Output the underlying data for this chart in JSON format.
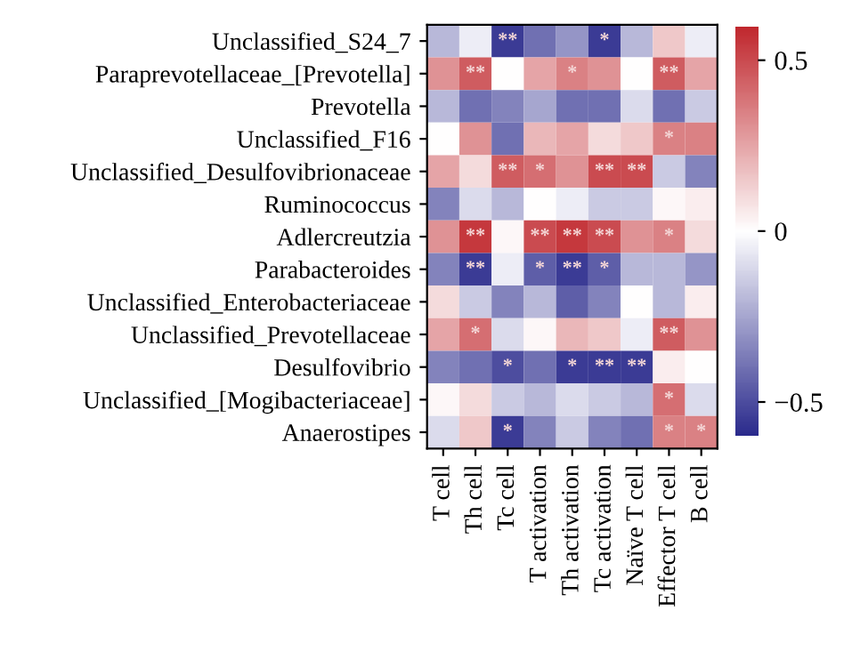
{
  "chart_data": {
    "type": "heatmap",
    "categories": [
      "T cell",
      "Th cell",
      "Tc cell",
      "T activation",
      "Th activation",
      "Tc activation",
      "Naïve T cell",
      "Effector T cell",
      "B cell"
    ],
    "y_categories": [
      "Unclassified_S24_7",
      "Paraprevotellaceae_[Prevotella]",
      "Prevotella",
      "Unclassified_F16",
      "Unclassified_Desulfovibrionaceae",
      "Ruminococcus",
      "Adlercreutzia",
      "Parabacteroides",
      "Unclassified_Enterobacteriaceae",
      "Unclassified_Prevotellaceae",
      "Desulfovibrio",
      "Unclassified_[Mogibacteriaceae]",
      "Anaerostipes"
    ],
    "cells": [
      [
        -0.2,
        -0.05,
        -0.55,
        -0.4,
        -0.3,
        -0.55,
        -0.2,
        0.15,
        -0.05
      ],
      [
        0.3,
        0.45,
        0.0,
        0.25,
        0.35,
        0.3,
        0.0,
        0.45,
        0.25
      ],
      [
        -0.2,
        -0.4,
        -0.35,
        -0.25,
        -0.4,
        -0.4,
        -0.1,
        -0.4,
        -0.15
      ],
      [
        0.0,
        0.3,
        -0.4,
        0.2,
        0.25,
        0.1,
        0.15,
        0.35,
        0.35
      ],
      [
        0.25,
        0.1,
        0.45,
        0.4,
        0.3,
        0.5,
        0.5,
        -0.15,
        -0.35
      ],
      [
        -0.35,
        -0.1,
        -0.2,
        0.0,
        -0.05,
        -0.15,
        -0.15,
        0.02,
        0.05
      ],
      [
        0.3,
        0.55,
        0.02,
        0.5,
        0.55,
        0.5,
        0.3,
        0.35,
        0.1
      ],
      [
        -0.35,
        -0.55,
        -0.05,
        -0.45,
        -0.55,
        -0.45,
        -0.2,
        -0.2,
        -0.3
      ],
      [
        0.1,
        -0.15,
        -0.35,
        -0.2,
        -0.45,
        -0.35,
        0.0,
        -0.2,
        0.05
      ],
      [
        0.25,
        0.4,
        -0.1,
        0.02,
        0.2,
        0.15,
        -0.05,
        0.45,
        0.3
      ],
      [
        -0.35,
        -0.4,
        -0.5,
        -0.4,
        -0.55,
        -0.55,
        -0.55,
        0.05,
        0.0
      ],
      [
        0.02,
        0.1,
        -0.15,
        -0.2,
        -0.1,
        -0.15,
        -0.2,
        0.4,
        -0.1
      ],
      [
        -0.1,
        0.15,
        -0.55,
        -0.35,
        -0.15,
        -0.35,
        -0.4,
        0.35,
        0.35
      ]
    ],
    "cell_labels": [
      [
        null,
        null,
        "**",
        null,
        null,
        "*",
        null,
        null,
        null
      ],
      [
        null,
        "**",
        null,
        null,
        "*",
        null,
        null,
        "**",
        null
      ],
      [
        null,
        null,
        null,
        null,
        null,
        null,
        null,
        null,
        null
      ],
      [
        null,
        null,
        null,
        null,
        null,
        null,
        null,
        "*",
        null
      ],
      [
        null,
        null,
        "**",
        "*",
        null,
        "**",
        "**",
        null,
        null
      ],
      [
        null,
        null,
        null,
        null,
        null,
        null,
        null,
        null,
        null
      ],
      [
        null,
        "**",
        null,
        "**",
        "**",
        "**",
        null,
        "*",
        null
      ],
      [
        null,
        "**",
        null,
        "*",
        "**",
        "*",
        null,
        null,
        null
      ],
      [
        null,
        null,
        null,
        null,
        null,
        null,
        null,
        null,
        null
      ],
      [
        null,
        "*",
        null,
        null,
        null,
        null,
        null,
        "**",
        null
      ],
      [
        null,
        null,
        "*",
        null,
        "*",
        "**",
        "**",
        null,
        null
      ],
      [
        null,
        null,
        null,
        null,
        null,
        null,
        null,
        "*",
        null
      ],
      [
        null,
        null,
        "*",
        null,
        null,
        null,
        null,
        "*",
        "*"
      ]
    ],
    "clim": [
      -0.6,
      0.6
    ],
    "cticks": [
      0.5,
      0,
      {
        "value": -0.5,
        "label": "−0.5"
      }
    ]
  }
}
